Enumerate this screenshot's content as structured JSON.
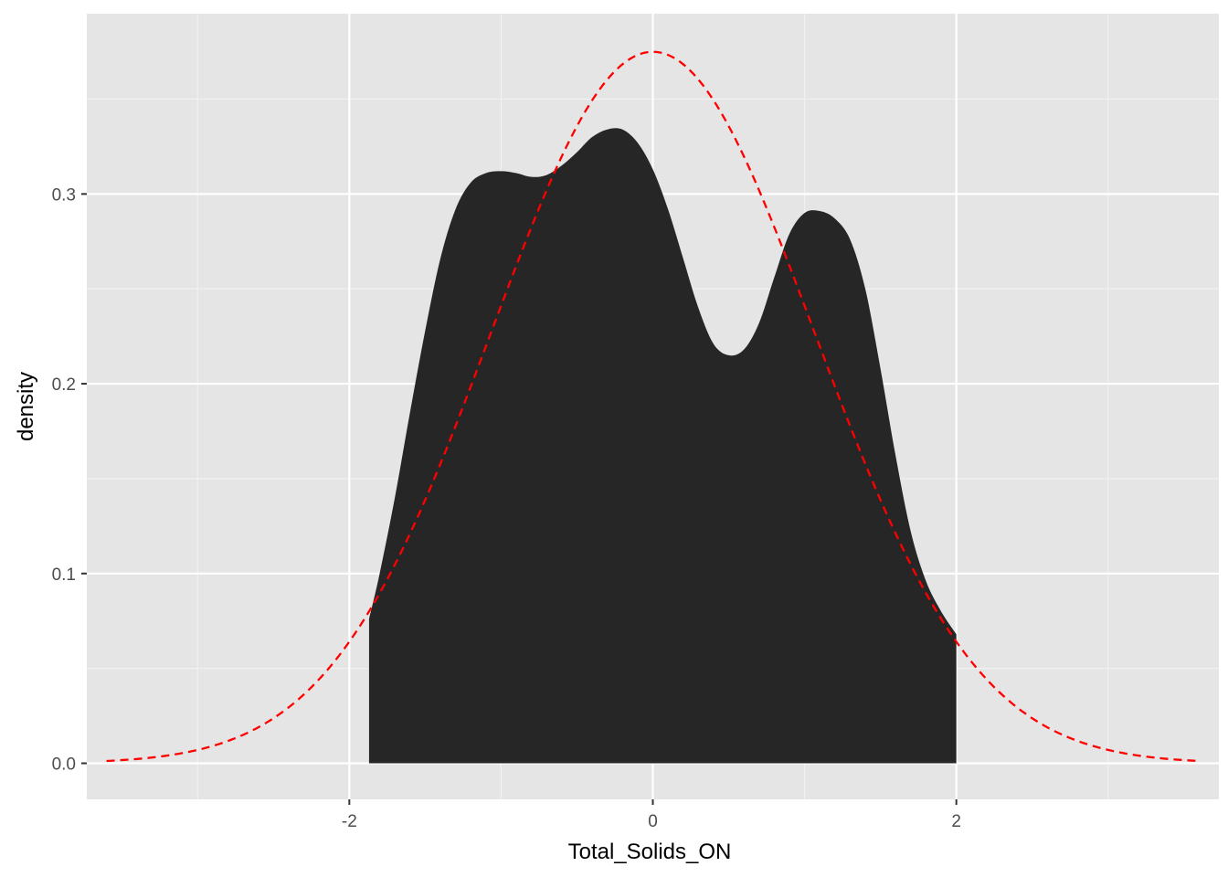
{
  "chart_data": {
    "type": "area",
    "title": "",
    "xlabel": "Total_Solids_ON",
    "ylabel": "density",
    "xlim": [
      -3.73,
      3.73
    ],
    "ylim": [
      -0.019,
      0.395
    ],
    "x_ticks": [
      -2,
      0,
      2
    ],
    "x_tick_labels": [
      "-2",
      "0",
      "2"
    ],
    "y_ticks": [
      0.0,
      0.1,
      0.2,
      0.3
    ],
    "y_tick_labels": [
      "0.0",
      "0.1",
      "0.2",
      "0.3"
    ],
    "grid": true,
    "legend": "none",
    "series": [
      {
        "kind": "density_area",
        "color": "#262626",
        "x": [
          -1.87,
          -1.8,
          -1.7,
          -1.6,
          -1.5,
          -1.4,
          -1.3,
          -1.2,
          -1.1,
          -1.0,
          -0.9,
          -0.8,
          -0.7,
          -0.6,
          -0.5,
          -0.4,
          -0.3,
          -0.2,
          -0.1,
          0.0,
          0.1,
          0.2,
          0.3,
          0.4,
          0.5,
          0.6,
          0.7,
          0.8,
          0.9,
          1.0,
          1.1,
          1.2,
          1.3,
          1.4,
          1.5,
          1.6,
          1.7,
          1.8,
          1.9,
          2.0
        ],
        "y": [
          0.076,
          0.1,
          0.14,
          0.185,
          0.228,
          0.266,
          0.292,
          0.306,
          0.311,
          0.312,
          0.311,
          0.309,
          0.31,
          0.315,
          0.322,
          0.33,
          0.334,
          0.334,
          0.327,
          0.313,
          0.292,
          0.266,
          0.24,
          0.221,
          0.215,
          0.218,
          0.232,
          0.256,
          0.279,
          0.29,
          0.291,
          0.287,
          0.276,
          0.25,
          0.208,
          0.162,
          0.122,
          0.096,
          0.08,
          0.068
        ]
      },
      {
        "kind": "normal_curve",
        "color": "#ff0000",
        "style": "dashed",
        "mean": 0,
        "sd": 1.064,
        "x_range": [
          -3.6,
          3.6
        ]
      }
    ]
  }
}
